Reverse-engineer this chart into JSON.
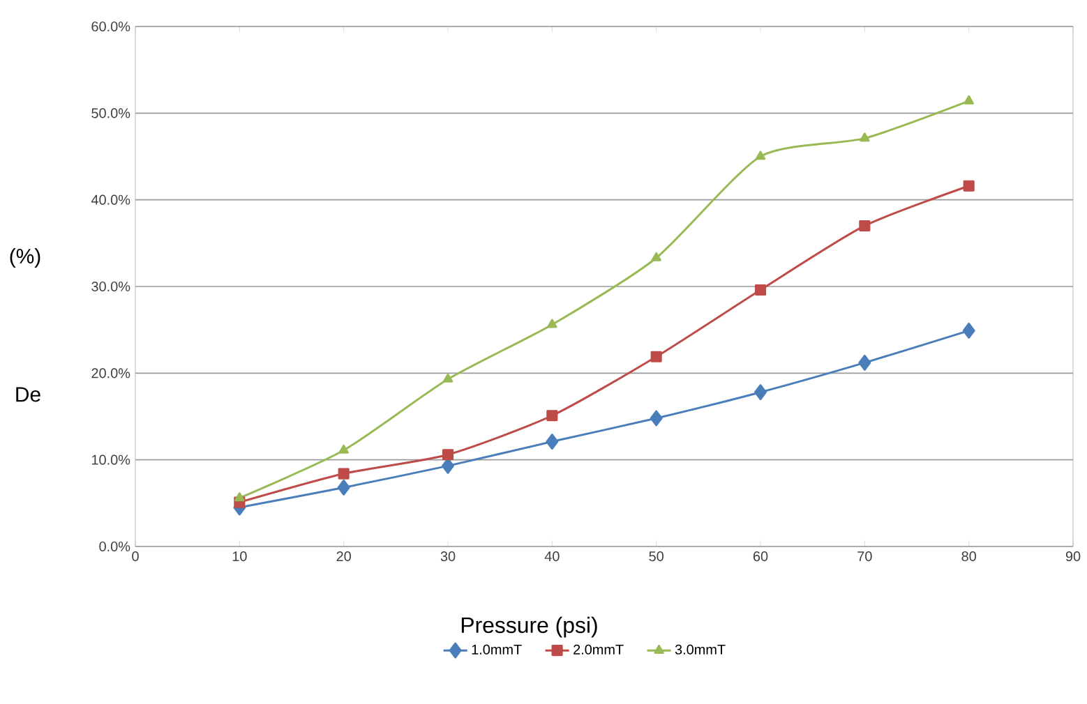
{
  "chart_data": {
    "type": "line",
    "xlabel": "Pressure (psi)",
    "annotations": [
      "(%)",
      "De"
    ],
    "x": [
      10,
      20,
      30,
      40,
      50,
      60,
      70,
      80
    ],
    "series": [
      {
        "name": "1.0mmT",
        "color": "#4a7ebb",
        "marker": "diamond",
        "values": [
          4.5,
          6.8,
          9.3,
          12.1,
          14.8,
          17.8,
          21.2,
          24.9
        ]
      },
      {
        "name": "2.0mmT",
        "color": "#be4b48",
        "marker": "square",
        "values": [
          5.1,
          8.4,
          10.6,
          15.1,
          21.9,
          29.6,
          37.0,
          41.6
        ]
      },
      {
        "name": "3.0mmT",
        "color": "#98b954",
        "marker": "triangle",
        "values": [
          5.6,
          11.1,
          19.3,
          25.6,
          33.3,
          45.0,
          47.1,
          51.4
        ]
      }
    ],
    "xlim": [
      0,
      90
    ],
    "xticks": [
      0,
      10,
      20,
      30,
      40,
      50,
      60,
      70,
      80,
      90
    ],
    "ylim": [
      0,
      60
    ],
    "yticks": [
      {
        "value": 0,
        "label": "0.0%"
      },
      {
        "value": 10,
        "label": "10.0%"
      },
      {
        "value": 20,
        "label": "20.0%"
      },
      {
        "value": 30,
        "label": "30.0%"
      },
      {
        "value": 40,
        "label": "40.0%"
      },
      {
        "value": 50,
        "label": "50.0%"
      },
      {
        "value": 60,
        "label": "60.0%"
      }
    ],
    "grid": "y",
    "legend": "bottom",
    "line_style": "solid"
  }
}
